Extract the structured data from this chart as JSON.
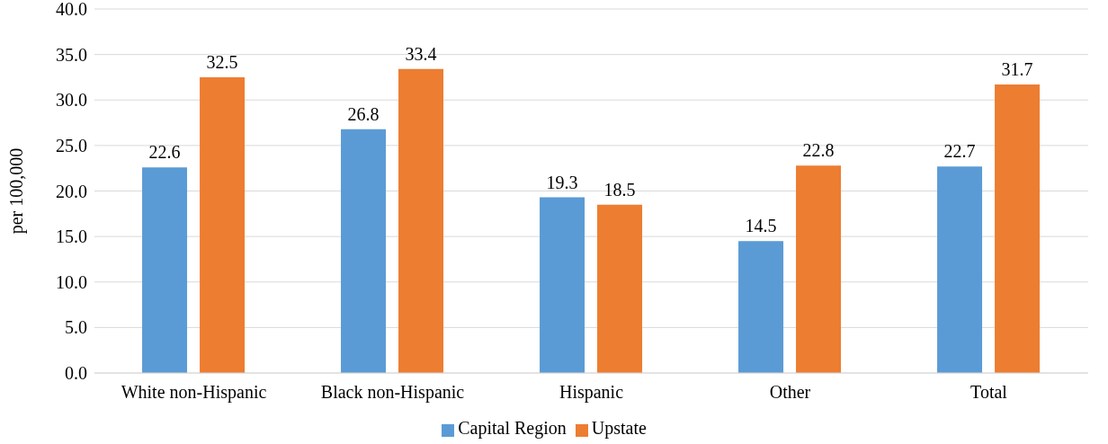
{
  "chart_data": {
    "type": "bar",
    "ylabel": "per 100,000",
    "categories": [
      "White non-Hispanic",
      "Black non-Hispanic",
      "Hispanic",
      "Other",
      "Total"
    ],
    "series": [
      {
        "name": "Capital Region",
        "color": "#5b9bd5",
        "values": [
          22.6,
          26.8,
          19.3,
          14.5,
          22.7
        ]
      },
      {
        "name": "Upstate",
        "color": "#ed7d31",
        "values": [
          32.5,
          33.4,
          18.5,
          22.8,
          31.7
        ]
      }
    ],
    "ylim": [
      0,
      40
    ],
    "yticks": [
      {
        "value": 0,
        "label": "0.0"
      },
      {
        "value": 5,
        "label": "5.0"
      },
      {
        "value": 10,
        "label": "10.0"
      },
      {
        "value": 15,
        "label": "15.0"
      },
      {
        "value": 20,
        "label": "20.0"
      },
      {
        "value": 25,
        "label": "25.0"
      },
      {
        "value": 30,
        "label": "30.0"
      },
      {
        "value": 35,
        "label": "35.0"
      },
      {
        "value": 40,
        "label": "40.0"
      }
    ],
    "grid": "y",
    "legend": "bottom",
    "data_labels": true
  }
}
